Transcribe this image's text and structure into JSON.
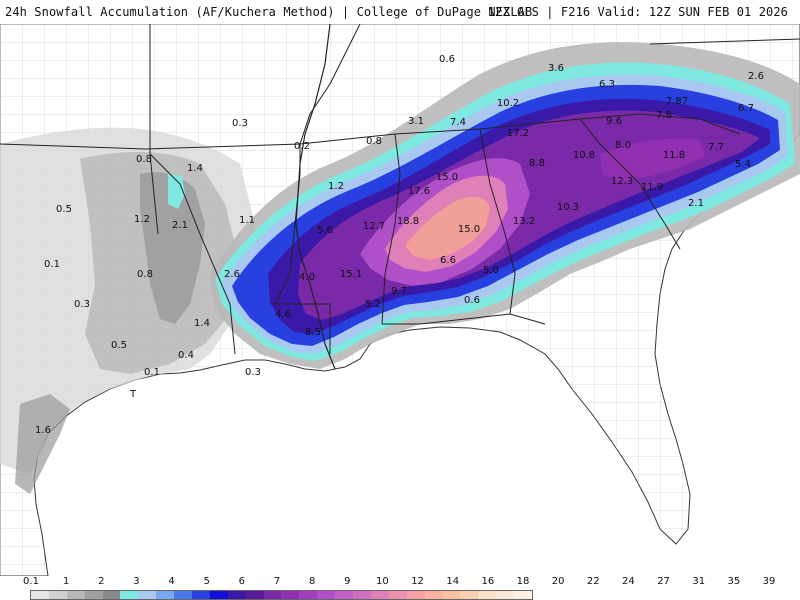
{
  "header": {
    "left_title": "24h Snowfall Accumulation (AF/Kuchera Method) | College of DuPage NEXLAB",
    "right_title": "12Z GFS | F216 Valid: 12Z SUN FEB 01 2026"
  },
  "map": {
    "value_labels": [
      {
        "id": "0-6-n",
        "text": "0.6"
      },
      {
        "id": "3-6",
        "text": "3.6"
      },
      {
        "id": "2-6-e",
        "text": "2.6"
      },
      {
        "id": "6-3",
        "text": "6.3"
      },
      {
        "id": "7-87",
        "text": "7.87"
      },
      {
        "id": "6-7",
        "text": "6.7"
      },
      {
        "id": "10-2",
        "text": "10.2"
      },
      {
        "id": "7-8",
        "text": "7.8"
      },
      {
        "id": "9-6",
        "text": "9.6"
      },
      {
        "id": "8-0",
        "text": "8.0"
      },
      {
        "id": "3-1",
        "text": "3.1"
      },
      {
        "id": "7-4",
        "text": "7.4"
      },
      {
        "id": "17-2",
        "text": "17.2"
      },
      {
        "id": "0-3-a",
        "text": "0.3"
      },
      {
        "id": "0-8-a",
        "text": "0.8"
      },
      {
        "id": "0-2",
        "text": "0.2"
      },
      {
        "id": "10-8",
        "text": "10.8"
      },
      {
        "id": "11-8",
        "text": "11.8"
      },
      {
        "id": "7-7",
        "text": "7.7"
      },
      {
        "id": "5-4",
        "text": "5.4"
      },
      {
        "id": "8-8",
        "text": "8.8"
      },
      {
        "id": "0-8-b",
        "text": "0.8"
      },
      {
        "id": "1-4-a",
        "text": "1.4"
      },
      {
        "id": "1-2-a",
        "text": "1.2"
      },
      {
        "id": "17-6",
        "text": "17.6"
      },
      {
        "id": "15-0-a",
        "text": "15.0"
      },
      {
        "id": "12-3",
        "text": "12.3"
      },
      {
        "id": "11-9",
        "text": "11.9"
      },
      {
        "id": "2-1-a",
        "text": "2.1"
      },
      {
        "id": "0-5-a",
        "text": "0.5"
      },
      {
        "id": "10-3",
        "text": "10.3"
      },
      {
        "id": "1-2-b",
        "text": "1.2"
      },
      {
        "id": "2-1-b",
        "text": "2.1"
      },
      {
        "id": "1-1",
        "text": "1.1"
      },
      {
        "id": "5-6",
        "text": "5.6"
      },
      {
        "id": "12-7",
        "text": "12.7"
      },
      {
        "id": "18-8",
        "text": "18.8"
      },
      {
        "id": "15-0-b",
        "text": "15.0"
      },
      {
        "id": "13-2",
        "text": "13.2"
      },
      {
        "id": "0-1-a",
        "text": "0.1"
      },
      {
        "id": "0-8-c",
        "text": "0.8"
      },
      {
        "id": "2-6-w",
        "text": "2.6"
      },
      {
        "id": "4-0",
        "text": "4.0"
      },
      {
        "id": "15-1",
        "text": "15.1"
      },
      {
        "id": "6-6",
        "text": "6.6"
      },
      {
        "id": "5-0",
        "text": "5.0"
      },
      {
        "id": "0-3-b",
        "text": "0.3"
      },
      {
        "id": "9-7",
        "text": "9.7"
      },
      {
        "id": "0-6-s",
        "text": "0.6"
      },
      {
        "id": "5-2",
        "text": "5.2"
      },
      {
        "id": "4-6",
        "text": "4.6"
      },
      {
        "id": "1-4-b",
        "text": "1.4"
      },
      {
        "id": "8-5",
        "text": "8.5"
      },
      {
        "id": "0-5-b",
        "text": "0.5"
      },
      {
        "id": "0-4",
        "text": "0.4"
      },
      {
        "id": "0-1-b",
        "text": "0.1"
      },
      {
        "id": "0-3-c",
        "text": "0.3"
      },
      {
        "id": "t",
        "text": "T"
      },
      {
        "id": "1-6",
        "text": "1.6"
      }
    ]
  },
  "legend": {
    "ticks": [
      "0.1",
      "1",
      "2",
      "3",
      "4",
      "5",
      "6",
      "7",
      "8",
      "9",
      "10",
      "12",
      "14",
      "16",
      "18",
      "20",
      "22",
      "24",
      "27",
      "31",
      "35",
      "39"
    ],
    "colors": [
      "#e6e6e6",
      "#d0d0d0",
      "#b8b8b8",
      "#a0a0a0",
      "#888888",
      "#7fe8e0",
      "#a8c8f0",
      "#78a8ee",
      "#4878ea",
      "#2840e0",
      "#1010d8",
      "#3a18a8",
      "#5a1a9a",
      "#7a2aa8",
      "#9030b0",
      "#a040c0",
      "#b050c8",
      "#c060c8",
      "#d070c0",
      "#e080b8",
      "#f090b0",
      "#f8a0a8",
      "#f8b0a0",
      "#f8c0a0",
      "#f8d0b0",
      "#f8e0c8",
      "#fce8d8",
      "#fdf0e4"
    ]
  }
}
